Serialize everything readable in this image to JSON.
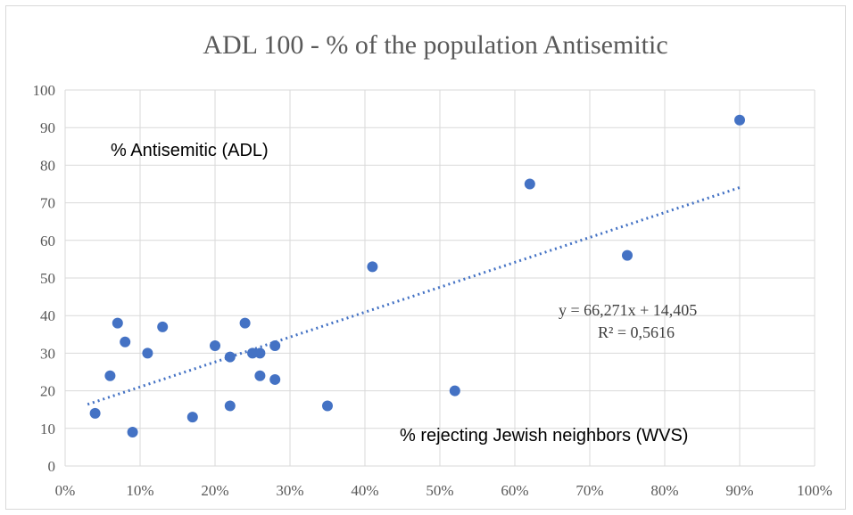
{
  "chart_data": {
    "type": "scatter",
    "title": "ADL  100   - % of the population Antisemitic",
    "xlabel": "",
    "ylabel": "",
    "xlim": [
      0,
      1
    ],
    "ylim": [
      0,
      100
    ],
    "x_ticks": [
      "0%",
      "10%",
      "20%",
      "30%",
      "40%",
      "50%",
      "60%",
      "70%",
      "80%",
      "90%",
      "100%"
    ],
    "y_ticks": [
      "0",
      "10",
      "20",
      "30",
      "40",
      "50",
      "60",
      "70",
      "80",
      "90",
      "100"
    ],
    "grid": true,
    "point_color": "#4472c4",
    "series": [
      {
        "points": [
          {
            "x": 0.04,
            "y": 14
          },
          {
            "x": 0.06,
            "y": 24
          },
          {
            "x": 0.07,
            "y": 38
          },
          {
            "x": 0.08,
            "y": 33
          },
          {
            "x": 0.09,
            "y": 9
          },
          {
            "x": 0.11,
            "y": 30
          },
          {
            "x": 0.13,
            "y": 37
          },
          {
            "x": 0.17,
            "y": 13
          },
          {
            "x": 0.2,
            "y": 32
          },
          {
            "x": 0.22,
            "y": 29
          },
          {
            "x": 0.22,
            "y": 16
          },
          {
            "x": 0.24,
            "y": 38
          },
          {
            "x": 0.25,
            "y": 30
          },
          {
            "x": 0.26,
            "y": 30
          },
          {
            "x": 0.26,
            "y": 24
          },
          {
            "x": 0.28,
            "y": 32
          },
          {
            "x": 0.28,
            "y": 23
          },
          {
            "x": 0.35,
            "y": 16
          },
          {
            "x": 0.41,
            "y": 53
          },
          {
            "x": 0.52,
            "y": 20
          },
          {
            "x": 0.62,
            "y": 75
          },
          {
            "x": 0.75,
            "y": 56
          },
          {
            "x": 0.9,
            "y": 92
          }
        ]
      }
    ],
    "trendline": {
      "type": "linear",
      "slope": 66.271,
      "intercept": 14.405,
      "x_range": [
        0.03,
        0.9
      ],
      "equation_label": "y = 66,271x  + 14,405",
      "r2_label": "R² = 0,5616"
    },
    "annotations": {
      "y_series_label": "% Antisemitic  (ADL)",
      "x_series_label": "% rejecting  Jewish neighbors  (WVS)"
    }
  }
}
